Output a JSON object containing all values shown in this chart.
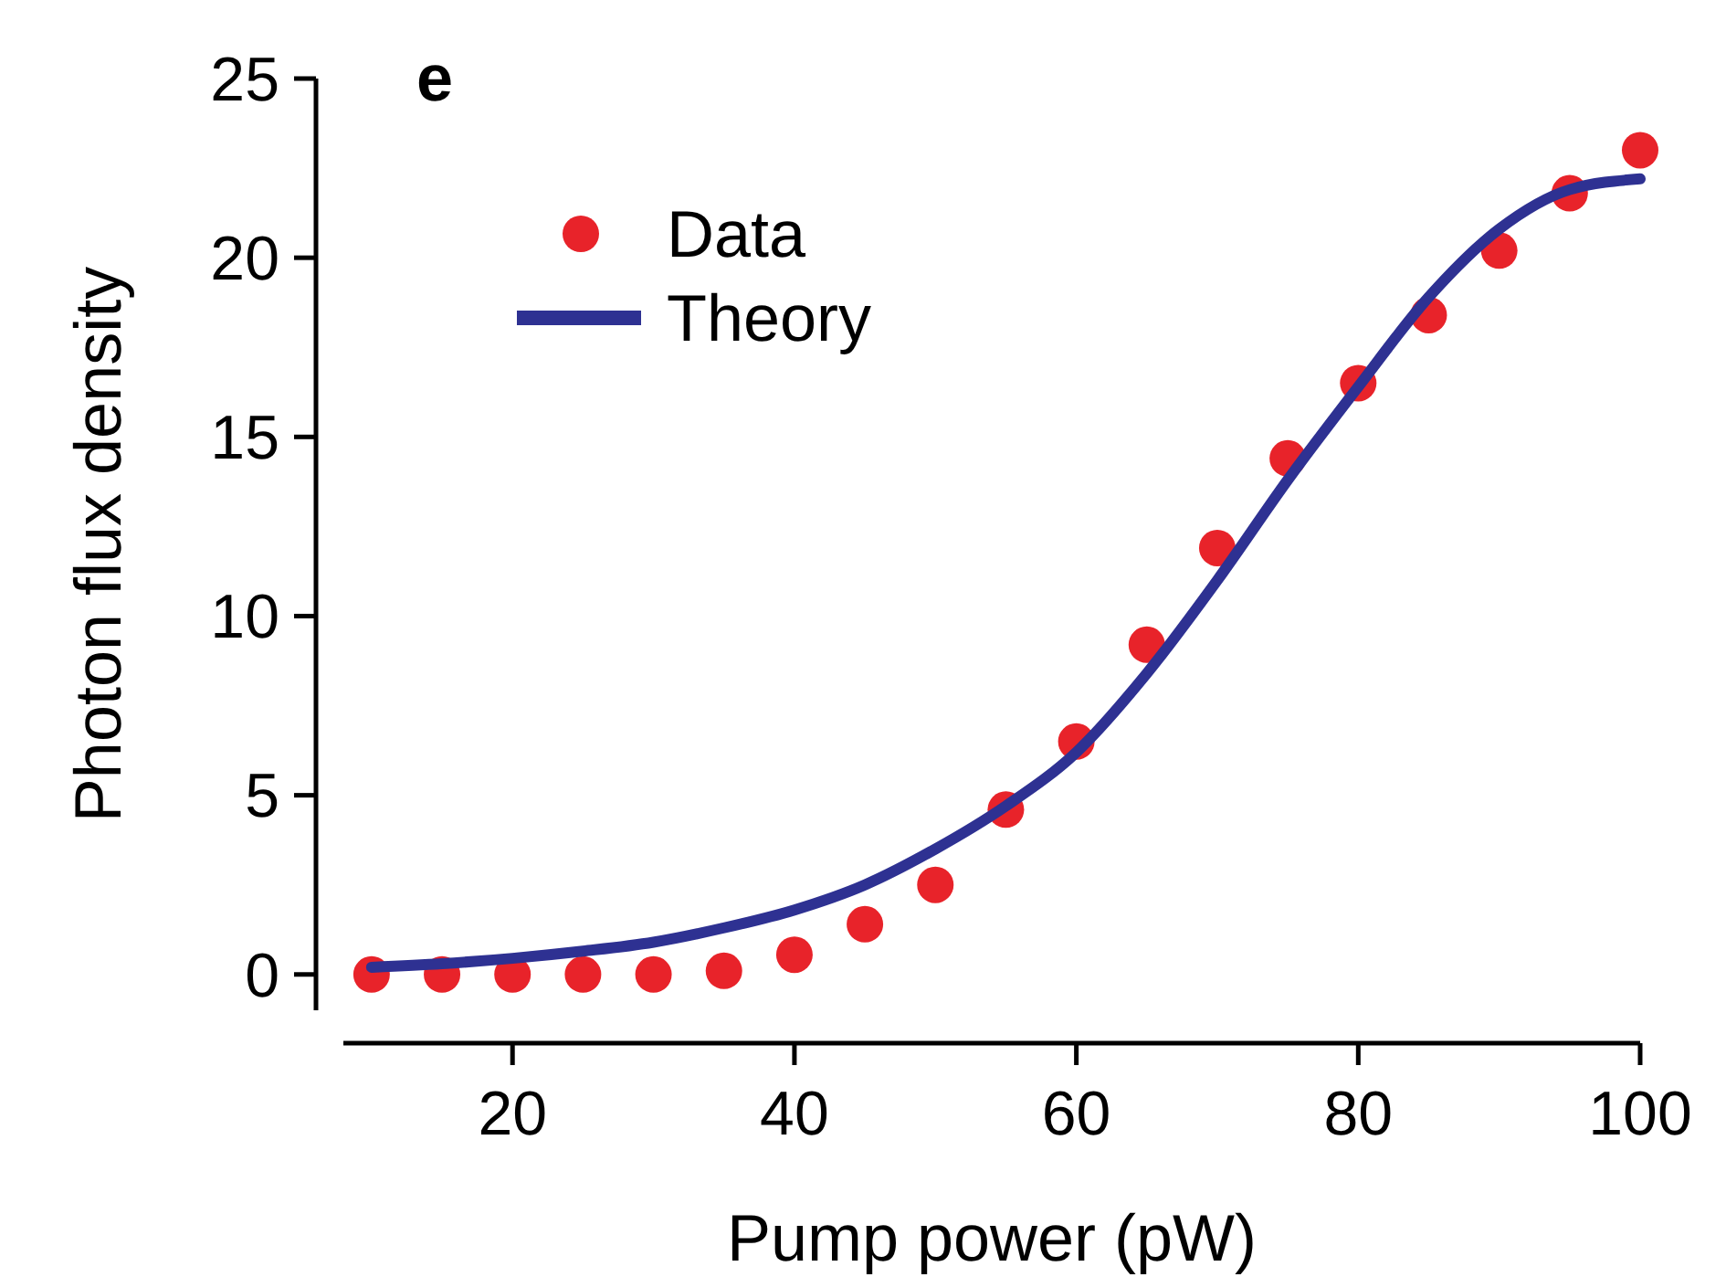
{
  "chart_data": {
    "type": "scatter",
    "xlabel": "Pump power (pW)",
    "ylabel": "Photon flux density",
    "annotations": [
      "e"
    ],
    "xlim": [
      8,
      100
    ],
    "ylim": [
      -1,
      25
    ],
    "xticks": [
      20,
      40,
      60,
      80,
      100
    ],
    "yticks": [
      0,
      5,
      10,
      15,
      20,
      25
    ],
    "grid": false,
    "legend": "top left",
    "series": [
      {
        "name": "Data",
        "marker": "circle",
        "color": "#e8232a",
        "x": [
          10,
          15,
          20,
          25,
          30,
          35,
          40,
          45,
          50,
          55,
          60,
          65,
          70,
          75,
          80,
          85,
          90,
          95,
          100
        ],
        "values": [
          0,
          0,
          0,
          0,
          0,
          0.1,
          0.55,
          1.4,
          2.5,
          4.6,
          6.5,
          9.2,
          11.9,
          14.4,
          16.5,
          18.4,
          20.2,
          21.8,
          23.0
        ]
      },
      {
        "name": "Theory",
        "type": "line",
        "line_style": "solid",
        "color": "#2e3192",
        "x": [
          10,
          15,
          20,
          25,
          30,
          35,
          40,
          45,
          50,
          55,
          60,
          65,
          70,
          75,
          80,
          85,
          90,
          95,
          100
        ],
        "values": [
          0.2,
          0.3,
          0.45,
          0.65,
          0.9,
          1.3,
          1.8,
          2.5,
          3.5,
          4.7,
          6.2,
          8.4,
          11.0,
          13.8,
          16.4,
          18.9,
          20.8,
          21.9,
          22.2
        ]
      }
    ]
  }
}
